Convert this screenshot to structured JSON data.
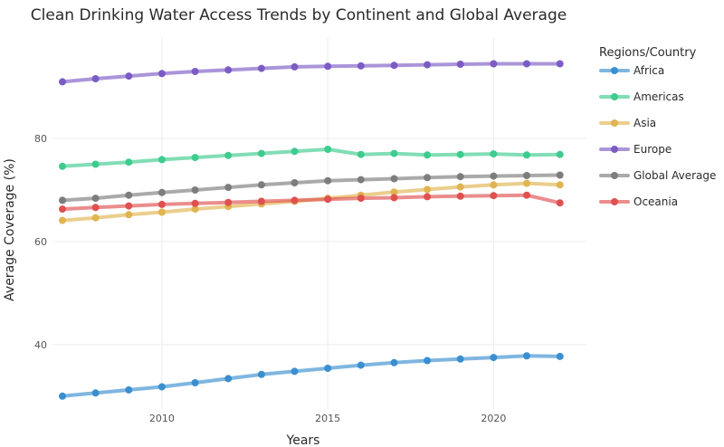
{
  "chart_data": {
    "type": "line",
    "title": "Clean Drinking Water Access Trends by Continent and Global Average",
    "xlabel": "Years",
    "ylabel": "Average Coverage (%)",
    "legend_title": "Regions/Country",
    "legend_position": "right",
    "grid": true,
    "xlim": [
      2006.7,
      2022.8
    ],
    "ylim": [
      27.5,
      99.5
    ],
    "x_ticks": [
      2010,
      2015,
      2020
    ],
    "y_ticks": [
      40,
      60,
      80
    ],
    "x": [
      2007,
      2008,
      2009,
      2010,
      2011,
      2012,
      2013,
      2014,
      2015,
      2016,
      2017,
      2018,
      2019,
      2020,
      2021,
      2022
    ],
    "series": [
      {
        "name": "Africa",
        "color": "#3a8fd0",
        "values": [
          30.0,
          30.6,
          31.2,
          31.8,
          32.6,
          33.4,
          34.2,
          34.8,
          35.4,
          36.0,
          36.5,
          36.9,
          37.2,
          37.5,
          37.8,
          37.7
        ]
      },
      {
        "name": "Americas",
        "color": "#3ecb8e",
        "values": [
          74.6,
          75.0,
          75.4,
          75.9,
          76.3,
          76.7,
          77.1,
          77.5,
          77.9,
          76.9,
          77.1,
          76.8,
          76.9,
          77.0,
          76.8,
          76.9
        ]
      },
      {
        "name": "Asia",
        "color": "#e0b450",
        "values": [
          64.1,
          64.6,
          65.2,
          65.7,
          66.3,
          66.8,
          67.3,
          67.8,
          68.4,
          69.0,
          69.6,
          70.1,
          70.6,
          71.0,
          71.3,
          71.0
        ]
      },
      {
        "name": "Europe",
        "color": "#7c5cc4",
        "values": [
          91.0,
          91.6,
          92.1,
          92.6,
          93.0,
          93.3,
          93.6,
          93.9,
          94.0,
          94.1,
          94.2,
          94.3,
          94.4,
          94.5,
          94.5,
          94.5
        ]
      },
      {
        "name": "Global Average",
        "color": "#7d7d7d",
        "values": [
          68.0,
          68.4,
          69.0,
          69.5,
          70.0,
          70.5,
          71.0,
          71.4,
          71.8,
          72.0,
          72.2,
          72.4,
          72.6,
          72.7,
          72.8,
          72.9
        ]
      },
      {
        "name": "Oceania",
        "color": "#e05050",
        "values": [
          66.3,
          66.6,
          66.9,
          67.2,
          67.4,
          67.6,
          67.8,
          68.0,
          68.2,
          68.4,
          68.5,
          68.7,
          68.8,
          68.9,
          69.0,
          67.5
        ]
      }
    ]
  }
}
